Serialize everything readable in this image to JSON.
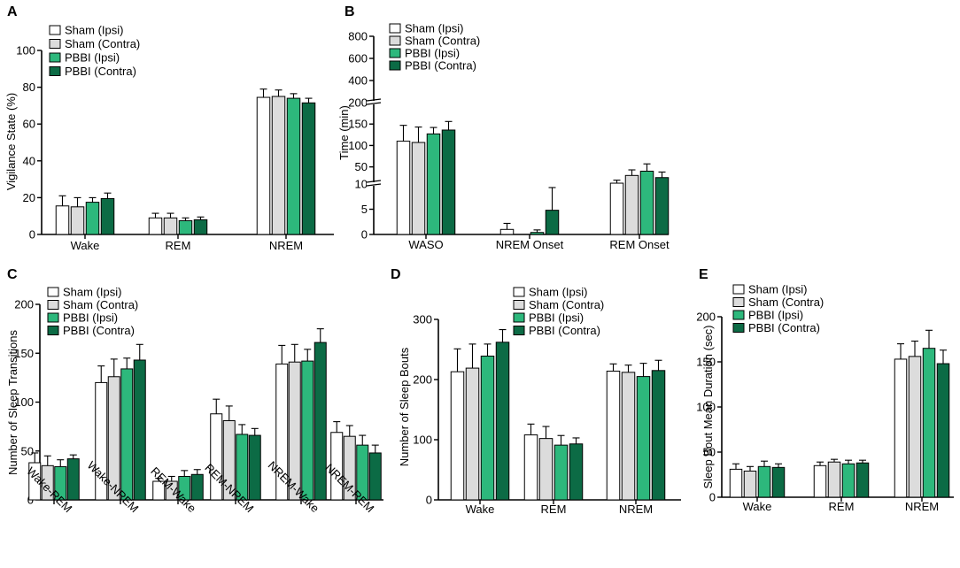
{
  "series_meta": [
    {
      "key": "sham_ipsi",
      "color": "#ffffff"
    },
    {
      "key": "sham_contra",
      "color": "#dcdcdc"
    },
    {
      "key": "pbbi_ipsi",
      "color": "#2db87c"
    },
    {
      "key": "pbbi_contra",
      "color": "#0c6b45"
    }
  ],
  "chart_data": [
    {
      "panel": "A",
      "type": "bar",
      "title": "",
      "xlabel": "",
      "ylabel": "Vigilance State (%)",
      "ylim": [
        0,
        100
      ],
      "yticks": [
        0,
        20,
        40,
        60,
        80,
        100
      ],
      "categories": [
        "Wake",
        "REM",
        "NREM"
      ],
      "category_label_rotated": false,
      "legend": [
        "Sham (Ipsi)",
        "Sham (Contra)",
        "PBBI (Ipsi)",
        "PBBI (Contra)"
      ],
      "series": [
        {
          "name": "Sham (Ipsi)",
          "values": [
            15.5,
            9,
            74.5
          ],
          "errors": [
            5.5,
            2.5,
            4.5
          ]
        },
        {
          "name": "Sham (Contra)",
          "values": [
            15,
            9,
            75
          ],
          "errors": [
            5,
            2.5,
            3.5
          ]
        },
        {
          "name": "PBBI (Ipsi)",
          "values": [
            17.5,
            7.5,
            74
          ],
          "errors": [
            2.5,
            1.5,
            2.5
          ]
        },
        {
          "name": "PBBI (Contra)",
          "values": [
            19.5,
            8,
            71.5
          ],
          "errors": [
            3,
            1.5,
            2.5
          ]
        }
      ]
    },
    {
      "panel": "B",
      "type": "bar",
      "title": "",
      "xlabel": "",
      "ylabel": "Time (min)",
      "ylim": [
        0,
        800
      ],
      "axis_break": "segmented: 0-10, 10-200, 200-800",
      "yticks": [
        0,
        5,
        10,
        50,
        100,
        150,
        200,
        400,
        600,
        800
      ],
      "categories": [
        "WASO",
        "NREM Onset",
        "REM Onset"
      ],
      "category_label_rotated": false,
      "legend": [
        "Sham (Ipsi)",
        "Sham (Contra)",
        "PBBI (Ipsi)",
        "PBBI (Contra)"
      ],
      "series": [
        {
          "name": "Sham (Ipsi)",
          "values": [
            110,
            1,
            12
          ],
          "errors": [
            37,
            1.2,
            7
          ]
        },
        {
          "name": "Sham (Contra)",
          "values": [
            107,
            0,
            30
          ],
          "errors": [
            36,
            0,
            13
          ]
        },
        {
          "name": "PBBI (Ipsi)",
          "values": [
            127,
            0.4,
            40
          ],
          "errors": [
            15,
            0.5,
            17
          ]
        },
        {
          "name": "PBBI (Contra)",
          "values": [
            136,
            4.8,
            25
          ],
          "errors": [
            20,
            4.5,
            13
          ]
        }
      ]
    },
    {
      "panel": "C",
      "type": "bar",
      "title": "",
      "xlabel": "",
      "ylabel": "Number of Sleep Transitions",
      "ylim": [
        0,
        200
      ],
      "yticks": [
        0,
        50,
        100,
        150,
        200
      ],
      "categories": [
        "Wake-REM",
        "Wake-NREM",
        "REM-Wake",
        "REM-NREM",
        "NREM-Wake",
        "NREM-REM"
      ],
      "category_label_rotated": true,
      "legend": [
        "Sham (Ipsi)",
        "Sham (Contra)",
        "PBBI (Ipsi)",
        "PBBI (Contra)"
      ],
      "series": [
        {
          "name": "Sham (Ipsi)",
          "values": [
            38,
            120,
            19,
            88,
            139,
            69
          ],
          "errors": [
            10,
            17,
            3,
            15,
            19,
            11
          ]
        },
        {
          "name": "Sham (Contra)",
          "values": [
            35,
            126,
            19,
            81,
            141,
            65
          ],
          "errors": [
            10,
            18,
            5,
            15,
            18,
            11
          ]
        },
        {
          "name": "PBBI (Ipsi)",
          "values": [
            34,
            134,
            24,
            67,
            142,
            56
          ],
          "errors": [
            7,
            11,
            6,
            10,
            12,
            10
          ]
        },
        {
          "name": "PBBI (Contra)",
          "values": [
            42,
            143,
            26,
            66,
            161,
            48
          ],
          "errors": [
            4,
            16,
            5,
            7,
            14,
            8
          ]
        }
      ]
    },
    {
      "panel": "D",
      "type": "bar",
      "title": "",
      "xlabel": "",
      "ylabel": "Number of Sleep Bouts",
      "ylim": [
        0,
        300
      ],
      "yticks": [
        0,
        100,
        200,
        300
      ],
      "categories": [
        "Wake",
        "REM",
        "NREM"
      ],
      "category_label_rotated": false,
      "legend": [
        "Sham (Ipsi)",
        "Sham (Contra)",
        "PBBI (Ipsi)",
        "PBBI (Contra)"
      ],
      "series": [
        {
          "name": "Sham (Ipsi)",
          "values": [
            213,
            108,
            214
          ],
          "errors": [
            38,
            18,
            12
          ]
        },
        {
          "name": "Sham (Contra)",
          "values": [
            219,
            102,
            212
          ],
          "errors": [
            40,
            20,
            12
          ]
        },
        {
          "name": "PBBI (Ipsi)",
          "values": [
            239,
            91,
            205
          ],
          "errors": [
            20,
            16,
            22
          ]
        },
        {
          "name": "PBBI (Contra)",
          "values": [
            262,
            93,
            215
          ],
          "errors": [
            21,
            10,
            17
          ]
        }
      ]
    },
    {
      "panel": "E",
      "type": "bar",
      "title": "",
      "xlabel": "",
      "ylabel": "Sleep Bout Mean Duration (sec)",
      "ylim": [
        0,
        200
      ],
      "yticks": [
        0,
        50,
        100,
        150,
        200
      ],
      "categories": [
        "Wake",
        "REM",
        "NREM"
      ],
      "category_label_rotated": false,
      "legend": [
        "Sham (Ipsi)",
        "Sham (Contra)",
        "PBBI (Ipsi)",
        "PBBI (Contra)"
      ],
      "series": [
        {
          "name": "Sham (Ipsi)",
          "values": [
            31,
            35,
            153
          ],
          "errors": [
            6,
            4,
            17
          ]
        },
        {
          "name": "Sham (Contra)",
          "values": [
            29,
            39,
            156
          ],
          "errors": [
            5,
            3,
            17
          ]
        },
        {
          "name": "PBBI (Ipsi)",
          "values": [
            34,
            37,
            165
          ],
          "errors": [
            6,
            4,
            20
          ]
        },
        {
          "name": "PBBI (Contra)",
          "values": [
            33,
            38,
            148
          ],
          "errors": [
            4,
            3,
            15
          ]
        }
      ]
    }
  ]
}
